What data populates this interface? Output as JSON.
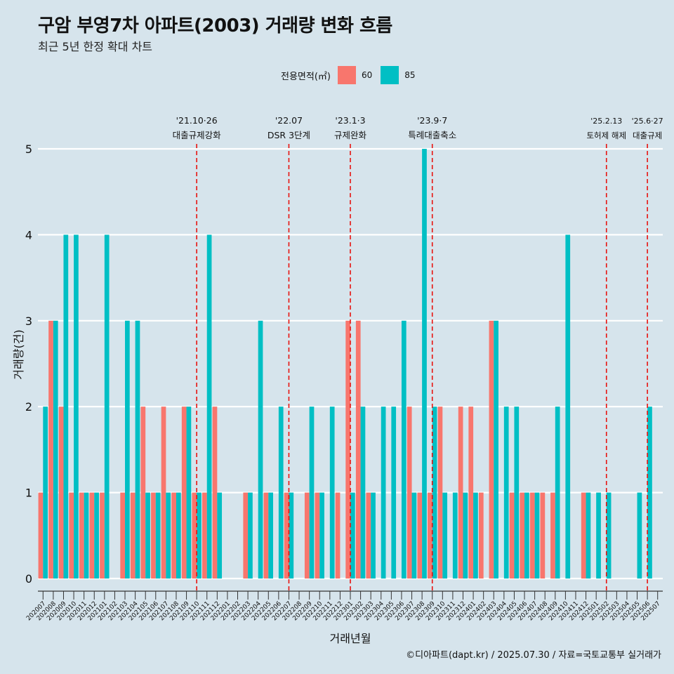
{
  "title": "구암 부영7차 아파트(2003) 거래량 변화 흐름",
  "subtitle": "최근 5년 한정 확대 차트",
  "legend": {
    "title": "전용면적(㎡)",
    "items": [
      {
        "label": "60",
        "color": "#f8766d"
      },
      {
        "label": "85",
        "color": "#00bfc4"
      }
    ]
  },
  "caption": "©디아파트(dapt.kr) / 2025.07.30 / 자료=국토교통부 실거래가",
  "chart_data": {
    "type": "bar",
    "xlabel": "거래년월",
    "ylabel": "거래량(건)",
    "ylim": [
      0,
      5
    ],
    "yticks": [
      0,
      1,
      2,
      3,
      4,
      5
    ],
    "categories": [
      "202007",
      "202008",
      "202009",
      "202010",
      "202011",
      "202012",
      "202101",
      "202102",
      "202103",
      "202104",
      "202105",
      "202106",
      "202107",
      "202108",
      "202109",
      "202110",
      "202111",
      "202112",
      "202201",
      "202202",
      "202203",
      "202204",
      "202205",
      "202206",
      "202207",
      "202208",
      "202209",
      "202210",
      "202211",
      "202212",
      "202301",
      "202302",
      "202303",
      "202304",
      "202305",
      "202306",
      "202307",
      "202308",
      "202309",
      "202310",
      "202311",
      "202312",
      "202401",
      "202402",
      "202403",
      "202404",
      "202405",
      "202406",
      "202407",
      "202408",
      "202409",
      "202410",
      "202411",
      "202412",
      "202501",
      "202502",
      "202503",
      "202504",
      "202505",
      "202506",
      "202507"
    ],
    "series": [
      {
        "name": "60",
        "color": "#f8766d",
        "values": [
          1,
          3,
          2,
          1,
          1,
          1,
          1,
          0,
          1,
          1,
          2,
          1,
          2,
          1,
          2,
          1,
          1,
          2,
          0,
          0,
          1,
          0,
          1,
          0,
          1,
          0,
          1,
          1,
          0,
          1,
          3,
          3,
          1,
          0,
          0,
          0,
          2,
          1,
          1,
          2,
          0,
          2,
          2,
          1,
          3,
          0,
          1,
          1,
          1,
          1,
          1,
          0,
          0,
          1,
          0,
          0,
          0,
          0,
          0,
          0,
          0
        ]
      },
      {
        "name": "85",
        "color": "#00bfc4",
        "values": [
          2,
          3,
          4,
          4,
          1,
          1,
          4,
          0,
          3,
          3,
          1,
          1,
          1,
          1,
          2,
          1,
          4,
          1,
          0,
          0,
          1,
          3,
          1,
          2,
          1,
          0,
          2,
          1,
          2,
          0,
          1,
          2,
          1,
          2,
          2,
          3,
          1,
          5,
          2,
          1,
          1,
          1,
          1,
          0,
          3,
          2,
          2,
          1,
          1,
          0,
          2,
          4,
          0,
          1,
          1,
          1,
          0,
          0,
          1,
          2,
          0
        ]
      }
    ],
    "events": [
      {
        "date": "'21.10·26",
        "label": "대출규제강화",
        "at": "202110"
      },
      {
        "date": "'22.07",
        "label": "DSR 3단계",
        "at": "202207"
      },
      {
        "date": "'23.1·3",
        "label": "규제완화",
        "at": "202301"
      },
      {
        "date": "'23.9·7",
        "label": "특례대출축소",
        "at": "202309"
      },
      {
        "date": "'25.2.13",
        "label": "토허제 해제",
        "at": "202502"
      },
      {
        "date": "'25.6·27",
        "label": "대출규제",
        "at": "202506"
      }
    ]
  }
}
